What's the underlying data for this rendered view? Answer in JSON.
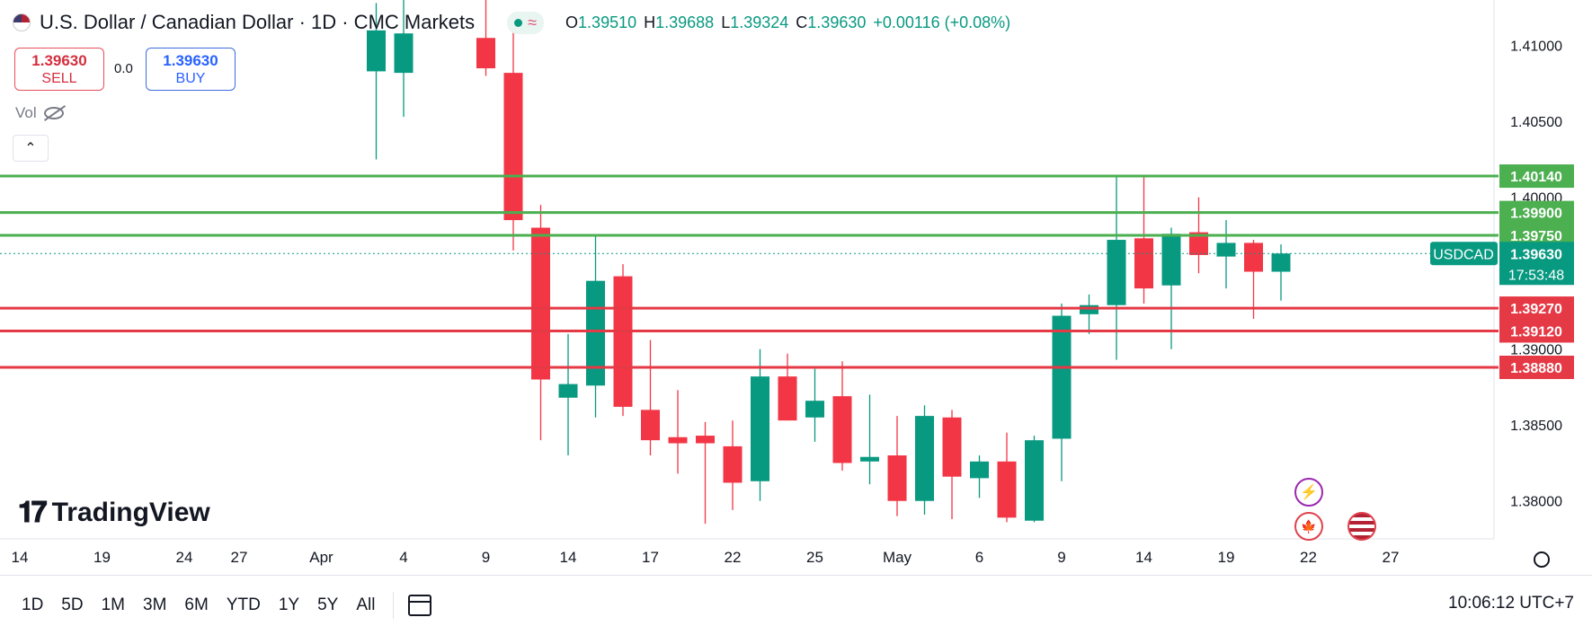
{
  "header": {
    "title": "U.S. Dollar / Canadian Dollar · 1D · CMC Markets",
    "ohlc": [
      {
        "k": "O",
        "v": "1.39510"
      },
      {
        "k": "H",
        "v": "1.39688"
      },
      {
        "k": "L",
        "v": "1.39324"
      },
      {
        "k": "C",
        "v": "1.39630"
      }
    ],
    "change": "+0.00116 (+0.08%)"
  },
  "trade": {
    "sell_price": "1.39630",
    "sell_label": "SELL",
    "spread": "0.0",
    "buy_price": "1.39630",
    "buy_label": "BUY"
  },
  "volume_label": "Vol",
  "logo_text": "TradingView",
  "toolbar": {
    "timeframes": [
      "1D",
      "5D",
      "1M",
      "3M",
      "6M",
      "YTD",
      "1Y",
      "5Y",
      "All"
    ],
    "clock": "10:06:12 UTC+7"
  },
  "colors": {
    "up": "#089981",
    "down": "#f23645",
    "resistance": "#4caf50",
    "support": "#e53945"
  },
  "chart_data": {
    "type": "candlestick",
    "symbol_label": "USDCAD",
    "last_price": "1.39630",
    "countdown": "17:53:48",
    "y_ticks": [
      1.41,
      1.405,
      1.4,
      1.395,
      1.39,
      1.385,
      1.38
    ],
    "y_tick_labels": [
      "1.41000",
      "1.40500",
      "1.40000",
      "1.39500",
      "1.39000",
      "1.38500",
      "1.38000"
    ],
    "ylim": [
      1.3775,
      1.413
    ],
    "x_ticks": [
      {
        "i": 0,
        "label": "14"
      },
      {
        "i": 3,
        "label": "19"
      },
      {
        "i": 6,
        "label": "24"
      },
      {
        "i": 8,
        "label": "27"
      },
      {
        "i": 11,
        "label": "Apr"
      },
      {
        "i": 14,
        "label": "4"
      },
      {
        "i": 17,
        "label": "9"
      },
      {
        "i": 20,
        "label": "14"
      },
      {
        "i": 23,
        "label": "17"
      },
      {
        "i": 26,
        "label": "22"
      },
      {
        "i": 29,
        "label": "25"
      },
      {
        "i": 32,
        "label": "May"
      },
      {
        "i": 35,
        "label": "6"
      },
      {
        "i": 38,
        "label": "9"
      },
      {
        "i": 41,
        "label": "14"
      },
      {
        "i": 44,
        "label": "19"
      },
      {
        "i": 47,
        "label": "22"
      },
      {
        "i": 50,
        "label": "27"
      }
    ],
    "candles": [
      {
        "i": 13,
        "o": 1.4083,
        "h": 1.4128,
        "l": 1.4025,
        "c": 1.411
      },
      {
        "i": 14,
        "o": 1.4082,
        "h": 1.415,
        "l": 1.4053,
        "c": 1.4108
      },
      {
        "i": 17,
        "o": 1.4105,
        "h": 1.414,
        "l": 1.408,
        "c": 1.4085
      },
      {
        "i": 18,
        "o": 1.4082,
        "h": 1.4112,
        "l": 1.3965,
        "c": 1.3985
      },
      {
        "i": 19,
        "o": 1.398,
        "h": 1.3995,
        "l": 1.384,
        "c": 1.388
      },
      {
        "i": 20,
        "o": 1.3868,
        "h": 1.391,
        "l": 1.383,
        "c": 1.3877
      },
      {
        "i": 21,
        "o": 1.3876,
        "h": 1.3975,
        "l": 1.3855,
        "c": 1.3945
      },
      {
        "i": 22,
        "o": 1.3948,
        "h": 1.3956,
        "l": 1.3856,
        "c": 1.3862
      },
      {
        "i": 23,
        "o": 1.386,
        "h": 1.3906,
        "l": 1.383,
        "c": 1.384
      },
      {
        "i": 24,
        "o": 1.3842,
        "h": 1.3873,
        "l": 1.3818,
        "c": 1.3838
      },
      {
        "i": 25,
        "o": 1.3843,
        "h": 1.3852,
        "l": 1.3785,
        "c": 1.3838
      },
      {
        "i": 26,
        "o": 1.3836,
        "h": 1.3853,
        "l": 1.3794,
        "c": 1.3812
      },
      {
        "i": 27,
        "o": 1.3813,
        "h": 1.39,
        "l": 1.38,
        "c": 1.3882
      },
      {
        "i": 28,
        "o": 1.3882,
        "h": 1.3897,
        "l": 1.3853,
        "c": 1.3853
      },
      {
        "i": 29,
        "o": 1.3855,
        "h": 1.3887,
        "l": 1.3839,
        "c": 1.3866
      },
      {
        "i": 30,
        "o": 1.3869,
        "h": 1.3892,
        "l": 1.382,
        "c": 1.3825
      },
      {
        "i": 31,
        "o": 1.3826,
        "h": 1.387,
        "l": 1.3811,
        "c": 1.3829
      },
      {
        "i": 32,
        "o": 1.383,
        "h": 1.3856,
        "l": 1.379,
        "c": 1.38
      },
      {
        "i": 33,
        "o": 1.38,
        "h": 1.3863,
        "l": 1.3791,
        "c": 1.3856
      },
      {
        "i": 34,
        "o": 1.3855,
        "h": 1.386,
        "l": 1.3788,
        "c": 1.3816
      },
      {
        "i": 35,
        "o": 1.3815,
        "h": 1.383,
        "l": 1.3802,
        "c": 1.3826
      },
      {
        "i": 36,
        "o": 1.3826,
        "h": 1.3845,
        "l": 1.3786,
        "c": 1.3789
      },
      {
        "i": 37,
        "o": 1.3787,
        "h": 1.3843,
        "l": 1.3786,
        "c": 1.384
      },
      {
        "i": 38,
        "o": 1.3841,
        "h": 1.393,
        "l": 1.3813,
        "c": 1.3922
      },
      {
        "i": 39,
        "o": 1.3923,
        "h": 1.3936,
        "l": 1.391,
        "c": 1.3929
      },
      {
        "i": 40,
        "o": 1.3929,
        "h": 1.4014,
        "l": 1.3893,
        "c": 1.3972
      },
      {
        "i": 41,
        "o": 1.3973,
        "h": 1.4014,
        "l": 1.393,
        "c": 1.394
      },
      {
        "i": 42,
        "o": 1.3942,
        "h": 1.398,
        "l": 1.39,
        "c": 1.3976
      },
      {
        "i": 43,
        "o": 1.3977,
        "h": 1.4,
        "l": 1.395,
        "c": 1.3962
      },
      {
        "i": 44,
        "o": 1.3961,
        "h": 1.3985,
        "l": 1.394,
        "c": 1.397
      },
      {
        "i": 45,
        "o": 1.397,
        "h": 1.3972,
        "l": 1.392,
        "c": 1.3951
      },
      {
        "i": 46,
        "o": 1.3951,
        "h": 1.3969,
        "l": 1.3932,
        "c": 1.3963
      }
    ],
    "levels": [
      {
        "value": 1.4014,
        "label": "1.40140",
        "kind": "resistance"
      },
      {
        "value": 1.399,
        "label": "1.39900",
        "kind": "resistance"
      },
      {
        "value": 1.3975,
        "label": "1.39750",
        "kind": "resistance"
      },
      {
        "value": 1.3927,
        "label": "1.39270",
        "kind": "support"
      },
      {
        "value": 1.3912,
        "label": "1.39120",
        "kind": "support"
      },
      {
        "value": 1.3888,
        "label": "1.38880",
        "kind": "support"
      }
    ],
    "grid": false
  }
}
